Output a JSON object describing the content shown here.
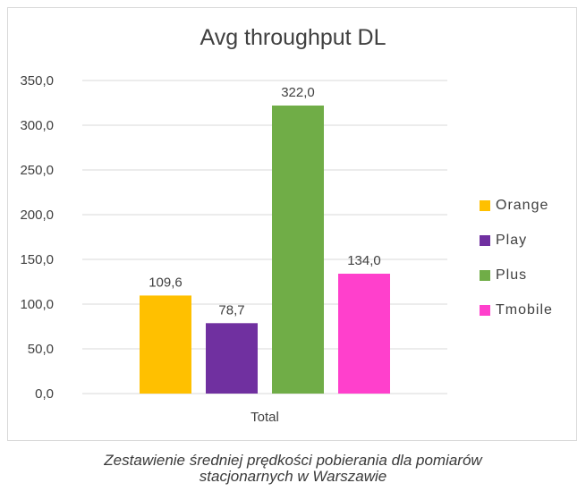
{
  "chart_data": {
    "type": "bar",
    "title": "Avg throughput DL",
    "categories": [
      "Total"
    ],
    "series": [
      {
        "name": "Orange",
        "values": [
          109.6
        ],
        "label": "109,6",
        "color": "#ffc000"
      },
      {
        "name": "Play",
        "values": [
          78.7
        ],
        "label": "78,7",
        "color": "#7030a0"
      },
      {
        "name": "Plus",
        "values": [
          322.0
        ],
        "label": "322,0",
        "color": "#70ad47"
      },
      {
        "name": "Tmobile",
        "values": [
          134.0
        ],
        "label": "134,0",
        "color": "#ff40cc"
      }
    ],
    "ylim": [
      0,
      350
    ],
    "yticks": [
      {
        "value": 0,
        "label": "0,0"
      },
      {
        "value": 50,
        "label": "50,0"
      },
      {
        "value": 100,
        "label": "100,0"
      },
      {
        "value": 150,
        "label": "150,0"
      },
      {
        "value": 200,
        "label": "200,0"
      },
      {
        "value": 250,
        "label": "250,0"
      },
      {
        "value": 300,
        "label": "300,0"
      },
      {
        "value": 350,
        "label": "350,0"
      }
    ],
    "xlabel": "",
    "ylabel": "",
    "grid": true,
    "legend_position": "right"
  },
  "caption": {
    "line1": "Zestawienie średniej prędkości pobierania dla pomiarów",
    "line2": "stacjonarnych w Warszawie"
  }
}
